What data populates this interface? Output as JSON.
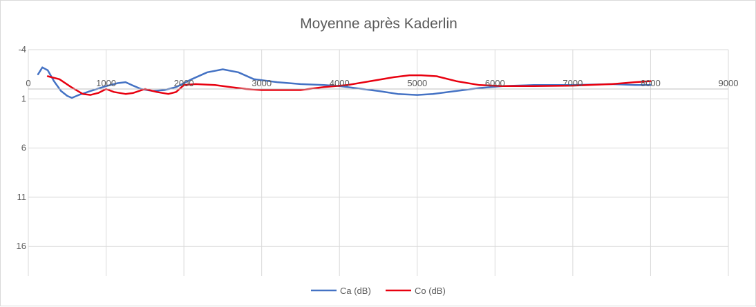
{
  "chart_data": {
    "type": "scatter",
    "title": "Moyenne après Kaderlin",
    "xlabel": "",
    "ylabel": "",
    "xlim": [
      0,
      9000
    ],
    "ylim": [
      -4,
      19
    ],
    "y_reversed": true,
    "x_ticks": [
      0,
      1000,
      2000,
      3000,
      4000,
      5000,
      6000,
      7000,
      8000,
      9000
    ],
    "y_ticks": [
      -4,
      1,
      6,
      11,
      16
    ],
    "grid": true,
    "legend_position": "bottom",
    "series": [
      {
        "name": "Ca (dB)",
        "color": "#4472c4",
        "points": [
          [
            125,
            -1.5
          ],
          [
            180,
            -2.2
          ],
          [
            250,
            -1.9
          ],
          [
            330,
            -0.8
          ],
          [
            420,
            0.2
          ],
          [
            500,
            0.7
          ],
          [
            560,
            0.9
          ],
          [
            650,
            0.6
          ],
          [
            800,
            0.2
          ],
          [
            1000,
            -0.3
          ],
          [
            1150,
            -0.6
          ],
          [
            1250,
            -0.7
          ],
          [
            1330,
            -0.4
          ],
          [
            1450,
            0.0
          ],
          [
            1600,
            0.2
          ],
          [
            1750,
            0.1
          ],
          [
            1900,
            -0.2
          ],
          [
            2100,
            -1.0
          ],
          [
            2300,
            -1.7
          ],
          [
            2500,
            -2.0
          ],
          [
            2700,
            -1.7
          ],
          [
            2900,
            -1.0
          ],
          [
            3200,
            -0.7
          ],
          [
            3500,
            -0.5
          ],
          [
            3800,
            -0.4
          ],
          [
            4000,
            -0.3
          ],
          [
            4200,
            -0.1
          ],
          [
            4500,
            0.2
          ],
          [
            4750,
            0.5
          ],
          [
            5000,
            0.6
          ],
          [
            5200,
            0.5
          ],
          [
            5500,
            0.2
          ],
          [
            5800,
            -0.1
          ],
          [
            6100,
            -0.3
          ],
          [
            6500,
            -0.4
          ],
          [
            7000,
            -0.4
          ],
          [
            7500,
            -0.5
          ],
          [
            7800,
            -0.4
          ],
          [
            8000,
            -0.4
          ]
        ]
      },
      {
        "name": "Co (dB)",
        "color": "#e8000f",
        "points": [
          [
            250,
            -1.3
          ],
          [
            400,
            -1.0
          ],
          [
            550,
            -0.2
          ],
          [
            700,
            0.5
          ],
          [
            800,
            0.6
          ],
          [
            900,
            0.4
          ],
          [
            1000,
            0.0
          ],
          [
            1100,
            0.3
          ],
          [
            1250,
            0.5
          ],
          [
            1350,
            0.4
          ],
          [
            1500,
            0.0
          ],
          [
            1650,
            0.3
          ],
          [
            1800,
            0.5
          ],
          [
            1900,
            0.3
          ],
          [
            2000,
            -0.4
          ],
          [
            2150,
            -0.5
          ],
          [
            2400,
            -0.4
          ],
          [
            2600,
            -0.2
          ],
          [
            2800,
            0.0
          ],
          [
            3000,
            0.1
          ],
          [
            3300,
            0.1
          ],
          [
            3500,
            0.1
          ],
          [
            3800,
            -0.2
          ],
          [
            4100,
            -0.4
          ],
          [
            4400,
            -0.8
          ],
          [
            4700,
            -1.2
          ],
          [
            4900,
            -1.4
          ],
          [
            5050,
            -1.4
          ],
          [
            5250,
            -1.3
          ],
          [
            5500,
            -0.8
          ],
          [
            5800,
            -0.4
          ],
          [
            6100,
            -0.3
          ],
          [
            6500,
            -0.3
          ],
          [
            7000,
            -0.35
          ],
          [
            7500,
            -0.5
          ],
          [
            7800,
            -0.7
          ],
          [
            8000,
            -0.8
          ]
        ]
      }
    ]
  }
}
